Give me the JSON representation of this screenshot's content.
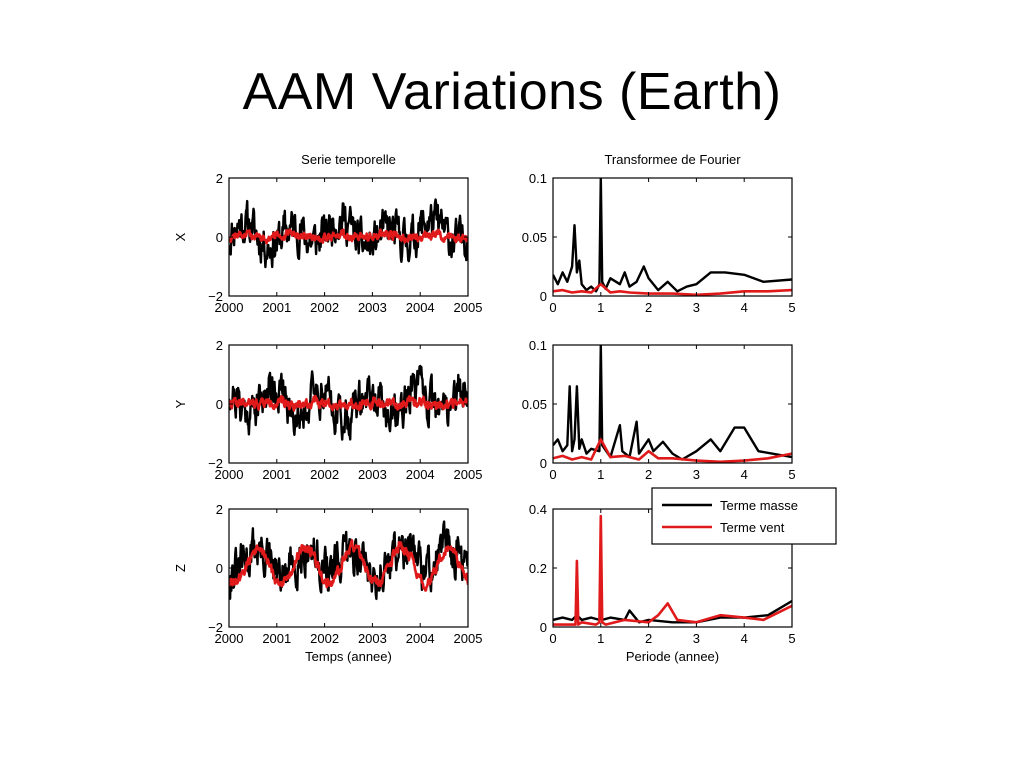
{
  "title": "AAM Variations (Earth)",
  "colors": {
    "masse": "#000000",
    "vent": "#e01a1a"
  },
  "legend": {
    "items": [
      "Terme masse",
      "Terme vent"
    ]
  },
  "chart_data": [
    {
      "id": "x-time",
      "type": "line",
      "title": "Serie temporelle",
      "xlabel": "",
      "ylabel": "X",
      "xlim": [
        2000,
        2005
      ],
      "ylim": [
        -2,
        2
      ],
      "xticks": [
        "2000",
        "2001",
        "2002",
        "2003",
        "2004",
        "2005"
      ],
      "yticks": [
        "−2",
        "0",
        "2"
      ],
      "noise": {
        "masse": {
          "amp": 0.55,
          "seed": 11,
          "seasonal": 0.3
        },
        "vent": {
          "amp": 0.12,
          "seed": 12,
          "seasonal": 0.05
        }
      },
      "series": [
        {
          "name": "Terme masse",
          "x": [
            2000,
            2000.5,
            2001,
            2001.5,
            2002,
            2002.5,
            2003,
            2003.5,
            2004,
            2004.5,
            2005
          ],
          "values": [
            0,
            0.3,
            -0.2,
            0.2,
            0.1,
            0.5,
            -0.3,
            0.1,
            0.3,
            0.2,
            0.1
          ]
        },
        {
          "name": "Terme vent",
          "x": [
            2000,
            2000.5,
            2001,
            2001.5,
            2002,
            2002.5,
            2003,
            2003.5,
            2004,
            2004.5,
            2005
          ],
          "values": [
            0,
            0.05,
            0,
            0.05,
            0,
            0.05,
            0,
            0.05,
            0,
            0.05,
            0
          ]
        }
      ]
    },
    {
      "id": "x-fft",
      "type": "line",
      "title": "Transformee de Fourier",
      "xlabel": "",
      "ylabel": "",
      "xlim": [
        0,
        5
      ],
      "ylim": [
        0,
        0.1
      ],
      "xticks": [
        "0",
        "1",
        "2",
        "3",
        "4",
        "5"
      ],
      "yticks": [
        "0",
        "0.05",
        "0.1"
      ],
      "series": [
        {
          "name": "Terme masse",
          "x": [
            0,
            0.1,
            0.2,
            0.3,
            0.4,
            0.45,
            0.5,
            0.55,
            0.6,
            0.7,
            0.8,
            0.9,
            0.97,
            1.0,
            1.03,
            1.1,
            1.2,
            1.4,
            1.5,
            1.6,
            1.75,
            1.9,
            2.0,
            2.2,
            2.4,
            2.6,
            2.8,
            3.0,
            3.3,
            3.6,
            4.0,
            4.4,
            5.0
          ],
          "values": [
            0.018,
            0.01,
            0.02,
            0.012,
            0.025,
            0.06,
            0.02,
            0.03,
            0.01,
            0.005,
            0.008,
            0.004,
            0.01,
            0.1,
            0.012,
            0.006,
            0.015,
            0.01,
            0.02,
            0.008,
            0.012,
            0.025,
            0.015,
            0.005,
            0.012,
            0.004,
            0.008,
            0.01,
            0.02,
            0.02,
            0.018,
            0.012,
            0.014
          ]
        },
        {
          "name": "Terme vent",
          "x": [
            0,
            0.2,
            0.4,
            0.6,
            0.8,
            1.0,
            1.2,
            1.4,
            1.6,
            2.0,
            2.5,
            3.0,
            3.5,
            4.0,
            4.5,
            5.0
          ],
          "values": [
            0.004,
            0.005,
            0.003,
            0.004,
            0.003,
            0.01,
            0.003,
            0.004,
            0.003,
            0.002,
            0.002,
            0.001,
            0.002,
            0.004,
            0.004,
            0.005
          ]
        }
      ]
    },
    {
      "id": "y-time",
      "type": "line",
      "title": "",
      "xlabel": "",
      "ylabel": "Y",
      "xlim": [
        2000,
        2005
      ],
      "ylim": [
        -2,
        2
      ],
      "xticks": [
        "2000",
        "2001",
        "2002",
        "2003",
        "2004",
        "2005"
      ],
      "yticks": [
        "−2",
        "0",
        "2"
      ],
      "noise": {
        "masse": {
          "amp": 0.55,
          "seed": 21,
          "seasonal": 0.5
        },
        "vent": {
          "amp": 0.14,
          "seed": 22,
          "seasonal": 0.05
        }
      },
      "series": [
        {
          "name": "Terme masse",
          "x": [
            2000,
            2000.5,
            2001,
            2001.5,
            2002,
            2002.5,
            2003,
            2003.5,
            2004,
            2004.5,
            2005
          ],
          "values": [
            0,
            0.3,
            0.1,
            0.2,
            -0.1,
            0.1,
            -0.3,
            0.2,
            0,
            0.3,
            -0.1
          ]
        },
        {
          "name": "Terme vent",
          "x": [
            2000,
            2000.5,
            2001,
            2001.5,
            2002,
            2002.5,
            2003,
            2003.5,
            2004,
            2004.5,
            2005
          ],
          "values": [
            0,
            0.05,
            0,
            0.05,
            0,
            0.05,
            0,
            0.05,
            0,
            0.05,
            0
          ]
        }
      ]
    },
    {
      "id": "y-fft",
      "type": "line",
      "title": "",
      "xlabel": "",
      "ylabel": "",
      "xlim": [
        0,
        5
      ],
      "ylim": [
        0,
        0.1
      ],
      "xticks": [
        "0",
        "1",
        "2",
        "3",
        "4",
        "5"
      ],
      "yticks": [
        "0",
        "0.05",
        "0.1"
      ],
      "series": [
        {
          "name": "Terme masse",
          "x": [
            0,
            0.1,
            0.2,
            0.3,
            0.35,
            0.4,
            0.45,
            0.5,
            0.55,
            0.6,
            0.7,
            0.8,
            0.97,
            1.0,
            1.03,
            1.2,
            1.4,
            1.45,
            1.6,
            1.75,
            1.8,
            2.0,
            2.1,
            2.3,
            2.5,
            2.7,
            3.0,
            3.3,
            3.5,
            3.8,
            4.0,
            4.3,
            5.0
          ],
          "values": [
            0.015,
            0.02,
            0.01,
            0.015,
            0.065,
            0.01,
            0.02,
            0.065,
            0.012,
            0.02,
            0.008,
            0.012,
            0.01,
            0.1,
            0.015,
            0.005,
            0.032,
            0.01,
            0.005,
            0.035,
            0.008,
            0.02,
            0.01,
            0.018,
            0.008,
            0.003,
            0.01,
            0.02,
            0.01,
            0.03,
            0.03,
            0.01,
            0.005
          ]
        },
        {
          "name": "Terme vent",
          "x": [
            0,
            0.2,
            0.4,
            0.6,
            0.8,
            1.0,
            1.2,
            1.5,
            1.8,
            2.0,
            2.2,
            2.5,
            3.0,
            3.5,
            4.0,
            4.5,
            5.0
          ],
          "values": [
            0.004,
            0.006,
            0.003,
            0.005,
            0.003,
            0.02,
            0.005,
            0.006,
            0.003,
            0.01,
            0.004,
            0.004,
            0.002,
            0.001,
            0.002,
            0.004,
            0.008
          ]
        }
      ]
    },
    {
      "id": "z-time",
      "type": "line",
      "title": "",
      "xlabel": "Temps (annee)",
      "ylabel": "Z",
      "xlim": [
        2000,
        2005
      ],
      "ylim": [
        -2,
        2
      ],
      "xticks": [
        "2000",
        "2001",
        "2002",
        "2003",
        "2004",
        "2005"
      ],
      "yticks": [
        "−2",
        "0",
        "2"
      ],
      "noise": {
        "masse": {
          "amp": 0.6,
          "seed": 31,
          "seasonal": 0.4
        },
        "vent": {
          "amp": 0.15,
          "seed": 32,
          "seasonal": 0.55
        }
      },
      "series": [
        {
          "name": "Terme masse",
          "x": [
            2000,
            2000.5,
            2001,
            2001.5,
            2002,
            2002.5,
            2003,
            2003.5,
            2004,
            2004.5,
            2005
          ],
          "values": [
            0.2,
            0.3,
            0,
            0.2,
            0.3,
            0.2,
            0.1,
            0.3,
            0.3,
            0.4,
            0.2
          ]
        },
        {
          "name": "Terme vent",
          "x": [
            2000,
            2000.5,
            2001,
            2001.5,
            2002,
            2002.5,
            2003,
            2003.5,
            2004,
            2004.5,
            2005
          ],
          "values": [
            0,
            0.1,
            0,
            0.2,
            0,
            0.2,
            0,
            0.2,
            0,
            0.1,
            0
          ]
        }
      ]
    },
    {
      "id": "z-fft",
      "type": "line",
      "title": "",
      "xlabel": "Periode (annee)",
      "ylabel": "",
      "xlim": [
        0,
        5
      ],
      "ylim": [
        0,
        0.5
      ],
      "xticks": [
        "0",
        "1",
        "2",
        "3",
        "4",
        "5"
      ],
      "yticks": [
        "0",
        "0.2",
        "0.4"
      ],
      "series": [
        {
          "name": "Terme masse",
          "x": [
            0,
            0.2,
            0.4,
            0.5,
            0.6,
            0.8,
            0.97,
            1.0,
            1.03,
            1.2,
            1.5,
            1.6,
            1.8,
            2.0,
            2.5,
            3.0,
            3.5,
            4.0,
            4.5,
            5.0
          ],
          "values": [
            0.03,
            0.04,
            0.03,
            0.05,
            0.03,
            0.04,
            0.03,
            0.05,
            0.03,
            0.04,
            0.03,
            0.07,
            0.02,
            0.03,
            0.02,
            0.02,
            0.04,
            0.04,
            0.05,
            0.11
          ]
        },
        {
          "name": "Terme vent",
          "x": [
            0,
            0.4,
            0.47,
            0.5,
            0.53,
            0.6,
            0.9,
            0.97,
            1.0,
            1.03,
            1.1,
            1.5,
            2.0,
            2.2,
            2.4,
            2.6,
            3.0,
            3.5,
            4.0,
            4.4,
            5.0
          ],
          "values": [
            0.01,
            0.01,
            0.01,
            0.28,
            0.01,
            0.02,
            0.01,
            0.02,
            0.47,
            0.02,
            0.01,
            0.03,
            0.02,
            0.05,
            0.1,
            0.03,
            0.02,
            0.05,
            0.04,
            0.03,
            0.09
          ]
        }
      ]
    }
  ]
}
